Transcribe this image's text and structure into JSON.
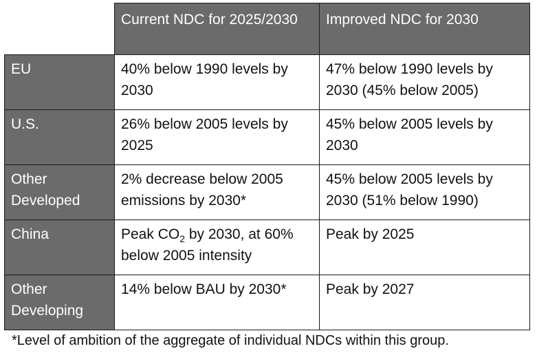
{
  "table": {
    "headers": [
      "",
      "Current NDC for 2025/2030",
      "Improved NDC for 2030"
    ],
    "rows": [
      {
        "region": "EU",
        "current": "40% below 1990 levels by 2030",
        "improved": "47% below 1990 levels by 2030 (45% below 2005)"
      },
      {
        "region": "U.S.",
        "current": "26% below 2005 levels by 2025",
        "improved": "45% below 2005 levels by 2030"
      },
      {
        "region": "Other Developed",
        "current": "2% decrease below 2005 emissions by 2030*",
        "improved": "45% below 2005 levels by 2030 (51% below 1990)"
      },
      {
        "region": "China",
        "current_before_sub": "Peak CO",
        "current_sub": "2",
        "current_after_sub": " by 2030, at 60% below 2005 intensity",
        "improved": "Peak by 2025"
      },
      {
        "region": "Other Developing",
        "current": "14% below BAU by 2030*",
        "improved": "Peak by 2027"
      }
    ]
  },
  "footnote": "*Level of ambition of the aggregate of individual NDCs within this group.",
  "colors": {
    "header_fill": "#6b6b6b",
    "header_text": "#ffffff",
    "border": "#1a1a1a"
  }
}
